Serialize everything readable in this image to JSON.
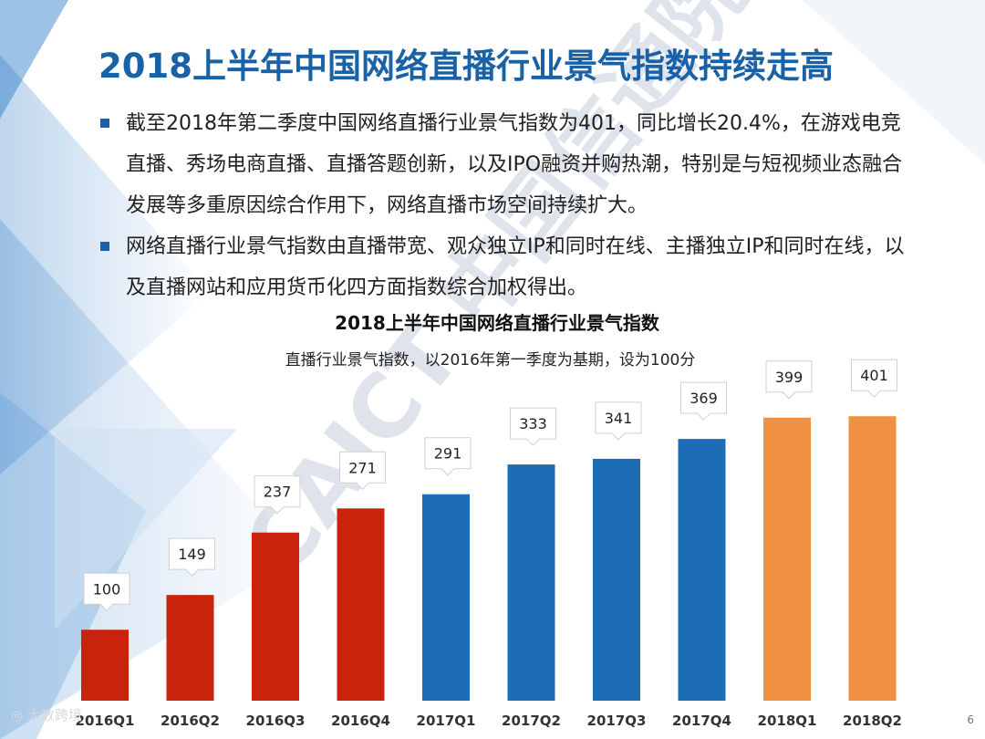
{
  "slide": {
    "title": "2018上半年中国网络直播行业景气指数持续走高",
    "bullets": [
      "截至2018年第二季度中国网络直播行业景气指数为401，同比增长20.4%，在游戏电竞直播、秀场电商直播、直播答题创新，以及IPO融资并购热潮，特别是与短视频业态融合发展等多重原因综合作用下，网络直播市场空间持续扩大。",
      "网络直播行业景气指数由直播带宽、观众独立IP和同时在线、主播独立IP和同时在线，以及直播网站和应用货币化四方面指数综合加权得出。"
    ],
    "watermark": "CAICT 中国信通院",
    "footer_logo": "大数跨境",
    "page_number": "6"
  },
  "chart_data": {
    "type": "bar",
    "title": "2018上半年中国网络直播行业景气指数",
    "subtitle": "直播行业景气指数，以2016年第一季度为基期，设为100分",
    "categories": [
      "2016Q1",
      "2016Q2",
      "2016Q3",
      "2016Q4",
      "2017Q1",
      "2017Q2",
      "2017Q3",
      "2017Q4",
      "2018Q1",
      "2018Q2"
    ],
    "values": [
      100,
      149,
      237,
      271,
      291,
      333,
      341,
      369,
      399,
      401
    ],
    "bar_colors": [
      "#c9230d",
      "#c9230d",
      "#c9230d",
      "#c9230d",
      "#1c6db5",
      "#1c6db5",
      "#1c6db5",
      "#1c6db5",
      "#ef9140",
      "#ef9140"
    ],
    "ylim": [
      0,
      400
    ],
    "xlabel": "",
    "ylabel": ""
  }
}
